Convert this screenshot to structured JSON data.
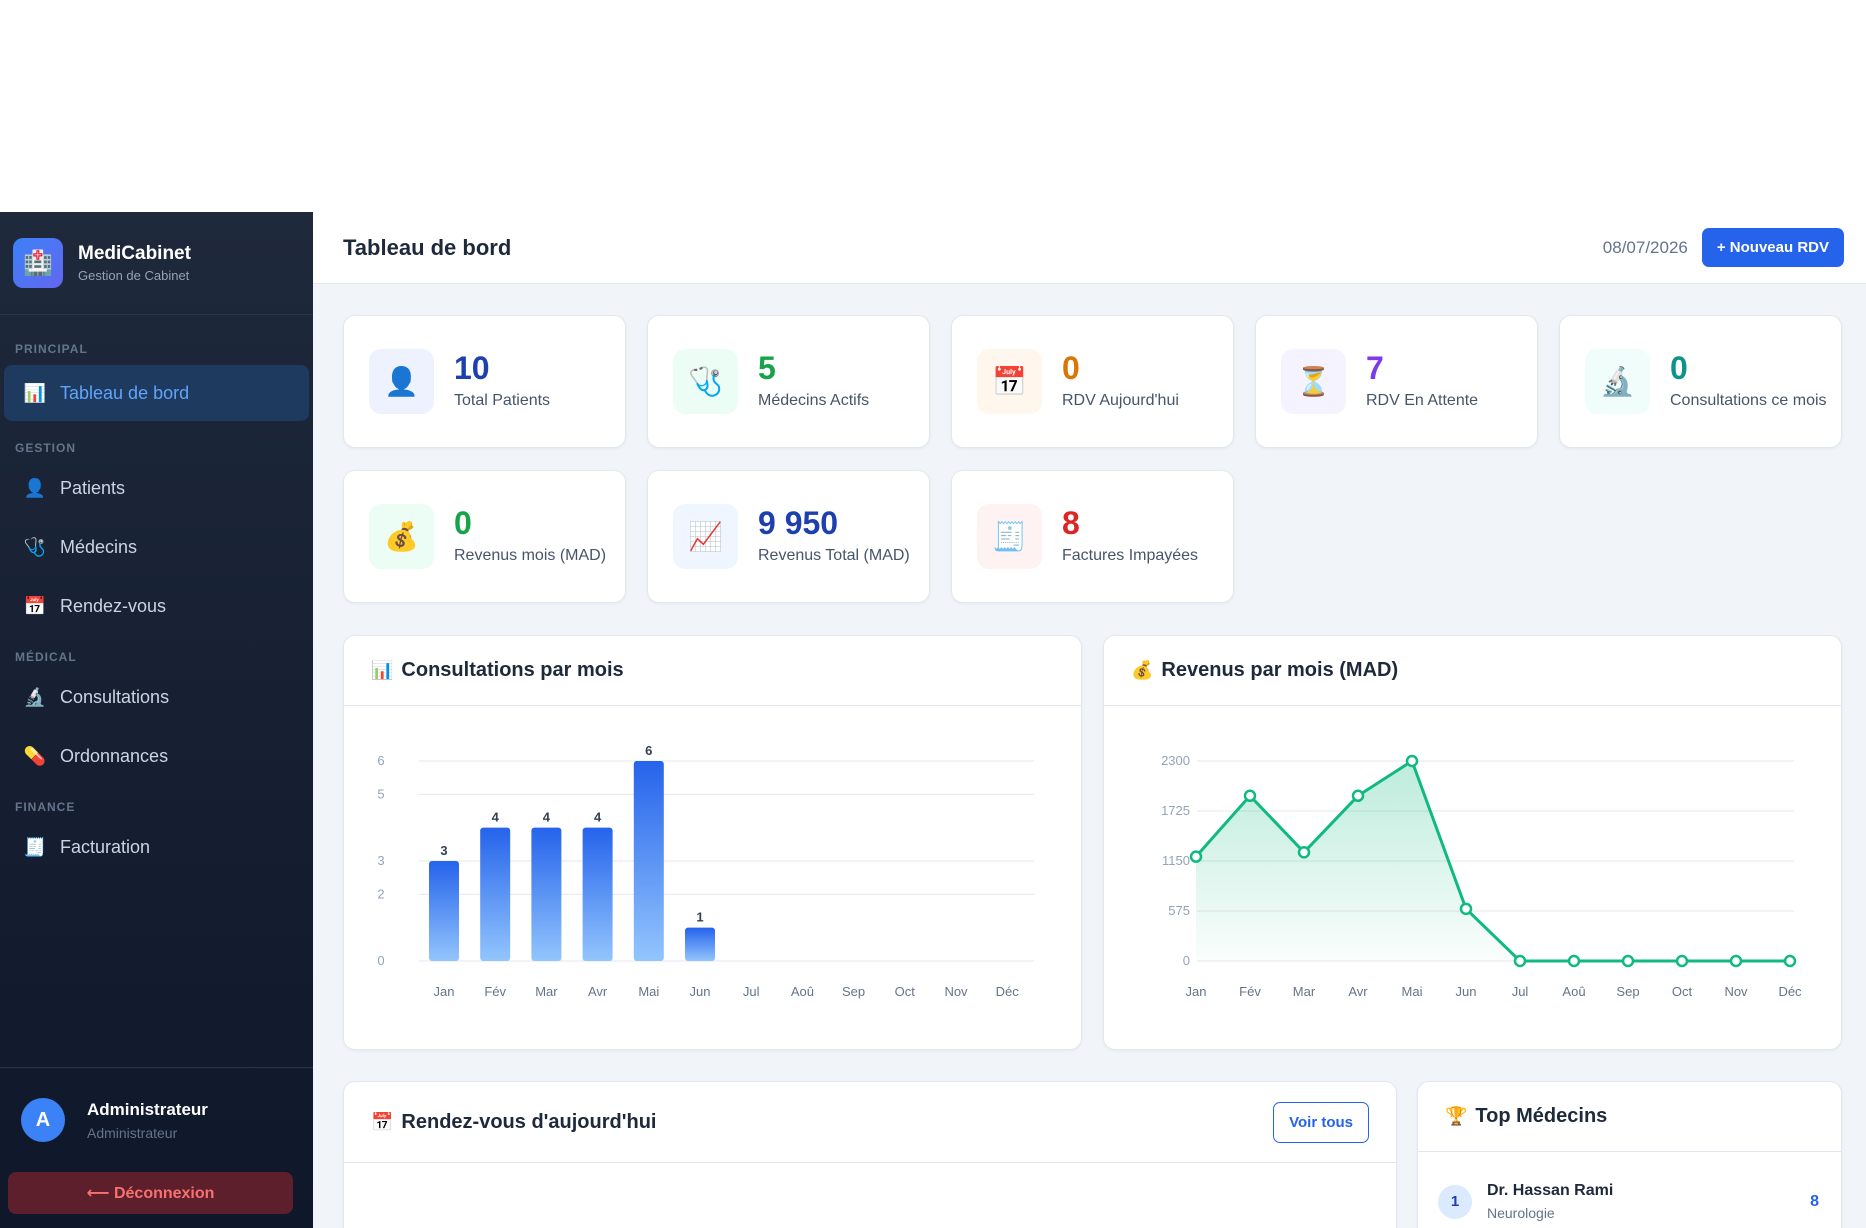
{
  "brand": {
    "name": "MediCabinet",
    "subtitle": "Gestion de Cabinet",
    "logo_icon": "🏥"
  },
  "nav": {
    "sections": {
      "principal": "PRINCIPAL",
      "gestion": "GESTION",
      "medical": "MÉDICAL",
      "finance": "FINANCE"
    },
    "items": [
      {
        "label": "Tableau de bord",
        "icon": "📊",
        "active": true
      },
      {
        "label": "Patients",
        "icon": "👤"
      },
      {
        "label": "Médecins",
        "icon": "🩺"
      },
      {
        "label": "Rendez-vous",
        "icon": "📅"
      },
      {
        "label": "Consultations",
        "icon": "🔬"
      },
      {
        "label": "Ordonnances",
        "icon": "💊"
      },
      {
        "label": "Facturation",
        "icon": "🧾"
      }
    ]
  },
  "user": {
    "initial": "A",
    "name": "Administrateur",
    "role": "Administrateur"
  },
  "logout_label": "⟵ Déconnexion",
  "header": {
    "title": "Tableau de bord",
    "date": "08/07/2026",
    "new_button": "+ Nouveau RDV"
  },
  "stats": [
    {
      "value": "10",
      "label": "Total Patients",
      "icon": "👤",
      "color": "#1e40af",
      "bg": "#eef2ff"
    },
    {
      "value": "5",
      "label": "Médecins Actifs",
      "icon": "🩺",
      "color": "#16a34a",
      "bg": "#ecfdf5"
    },
    {
      "value": "0",
      "label": "RDV Aujourd'hui",
      "icon": "📅",
      "color": "#d97706",
      "bg": "#fff7ed"
    },
    {
      "value": "7",
      "label": "RDV En Attente",
      "icon": "⏳",
      "color": "#7c3aed",
      "bg": "#f5f3ff"
    },
    {
      "value": "0",
      "label": "Consultations ce mois",
      "icon": "🔬",
      "color": "#0d9488",
      "bg": "#f0fdfa"
    },
    {
      "value": "0",
      "label": "Revenus mois (MAD)",
      "icon": "💰",
      "color": "#16a34a",
      "bg": "#ecfdf5"
    },
    {
      "value": "9 950",
      "label": "Revenus Total (MAD)",
      "icon": "📈",
      "color": "#1e40af",
      "bg": "#eff6ff"
    },
    {
      "value": "8",
      "label": "Factures Impayées",
      "icon": "🧾",
      "color": "#dc2626",
      "bg": "#fef2f2"
    }
  ],
  "panels": {
    "consultations": {
      "title": "Consultations par mois",
      "icon": "📊"
    },
    "revenus": {
      "title": "Revenus par mois (MAD)",
      "icon": "💰"
    },
    "rdv_today": {
      "title": "Rendez-vous d'aujourd'hui",
      "icon": "📅",
      "button": "Voir tous"
    },
    "top_medecins": {
      "title": "Top Médecins",
      "icon": "🏆"
    }
  },
  "top_medecins": [
    {
      "rank": "1",
      "name": "Dr. Hassan Rami",
      "specialty": "Neurologie",
      "count": "8"
    }
  ],
  "chart_data": [
    {
      "type": "bar",
      "title": "Consultations par mois",
      "categories": [
        "Jan",
        "Fév",
        "Mar",
        "Avr",
        "Mai",
        "Jun",
        "Jul",
        "Aoû",
        "Sep",
        "Oct",
        "Nov",
        "Déc"
      ],
      "values": [
        3,
        4,
        4,
        4,
        6,
        1,
        0,
        0,
        0,
        0,
        0,
        0
      ],
      "data_labels": [
        "3",
        "4",
        "4",
        "4",
        "6",
        "1",
        "",
        "",
        "",
        "",
        "",
        ""
      ],
      "yticks": [
        "0",
        "2",
        "3",
        "5",
        "6"
      ],
      "ylim": [
        0,
        6
      ],
      "color_top": "#2563eb",
      "color_bottom": "#93c5fd"
    },
    {
      "type": "area",
      "title": "Revenus par mois (MAD)",
      "categories": [
        "Jan",
        "Fév",
        "Mar",
        "Avr",
        "Mai",
        "Jun",
        "Jul",
        "Aoû",
        "Sep",
        "Oct",
        "Nov",
        "Déc"
      ],
      "values": [
        1200,
        1900,
        1250,
        1900,
        2300,
        600,
        0,
        0,
        0,
        0,
        0,
        0
      ],
      "yticks": [
        "0",
        "575",
        "1150",
        "1725",
        "2300"
      ],
      "ylim": [
        0,
        2300
      ],
      "color": "#10b981"
    }
  ]
}
